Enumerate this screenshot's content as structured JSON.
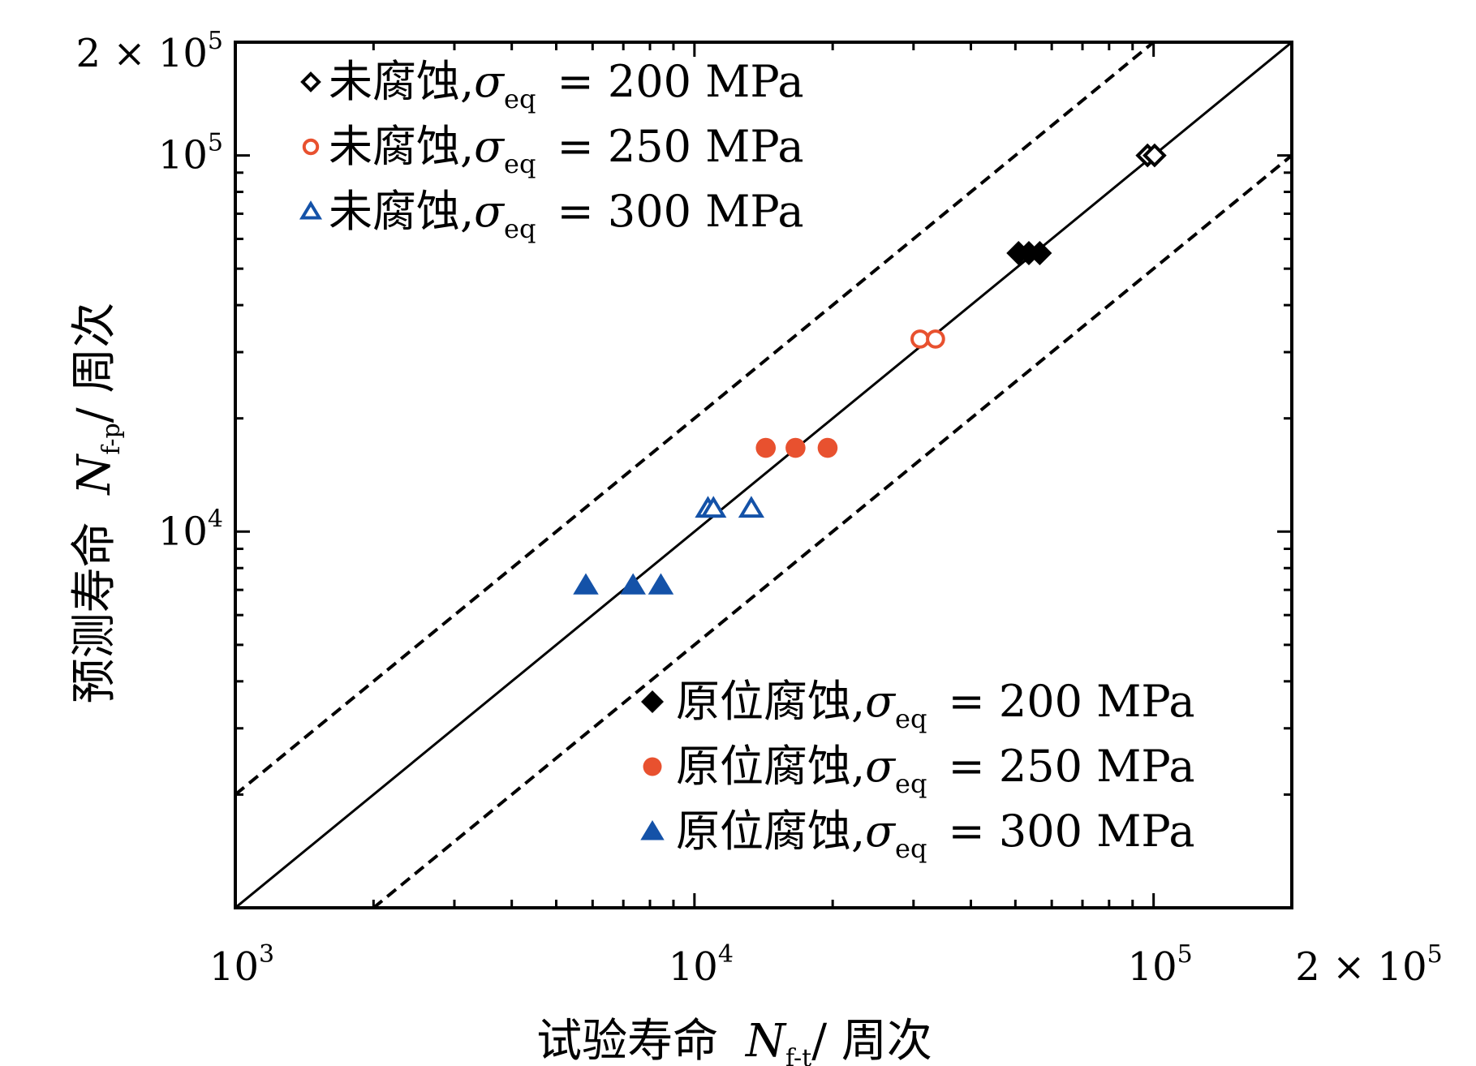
{
  "chart_data": {
    "type": "scatter",
    "xlabel": {
      "prefix": "试验寿命",
      "symbol": "N",
      "subscript": "f-t",
      "suffix": "/ 周次"
    },
    "ylabel": {
      "prefix": "预测寿命",
      "symbol": "N",
      "subscript": "f-p",
      "suffix": "/ 周次"
    },
    "xscale": "log",
    "yscale": "log",
    "xlim": [
      1000,
      200000
    ],
    "ylim": [
      1000,
      200000
    ],
    "x_ticks": [
      {
        "value": 1000,
        "base": "10",
        "exp": "3"
      },
      {
        "value": 10000,
        "base": "10",
        "exp": "4"
      },
      {
        "value": 100000,
        "base": "10",
        "exp": "5"
      },
      {
        "value": 200000,
        "base": "2 × 10",
        "exp": "5"
      }
    ],
    "y_ticks": [
      {
        "value": 10000,
        "base": "10",
        "exp": "4"
      },
      {
        "value": 100000,
        "base": "10",
        "exp": "5"
      },
      {
        "value": 200000,
        "base": "2 × 10",
        "exp": "5"
      }
    ],
    "reference_lines": [
      {
        "style": "solid",
        "factor": 1
      },
      {
        "style": "dashed",
        "factor": 2
      },
      {
        "style": "dashed",
        "factor": 0.5
      }
    ],
    "series": [
      {
        "name": "未腐蚀,σeq = 200 MPa",
        "marker": "diamond",
        "filled": false,
        "color": "#000000",
        "points": [
          [
            97000,
            100000
          ],
          [
            100500,
            100000
          ]
        ]
      },
      {
        "name": "未腐蚀,σeq = 250 MPa",
        "marker": "circle",
        "filled": false,
        "color": "#e8512f",
        "points": [
          [
            31000,
            32500
          ],
          [
            33500,
            32500
          ]
        ]
      },
      {
        "name": "未腐蚀,σeq = 300 MPa",
        "marker": "triangle",
        "filled": false,
        "color": "#1452a8",
        "points": [
          [
            10700,
            11500
          ],
          [
            11000,
            11500
          ],
          [
            13300,
            11500
          ]
        ]
      },
      {
        "name": "原位腐蚀,σeq = 200 MPa",
        "marker": "diamond",
        "filled": true,
        "color": "#000000",
        "points": [
          [
            50800,
            55000
          ],
          [
            53500,
            55000
          ],
          [
            56500,
            55000
          ]
        ]
      },
      {
        "name": "原位腐蚀,σeq = 250 MPa",
        "marker": "circle",
        "filled": true,
        "color": "#e8512f",
        "points": [
          [
            14300,
            16700
          ],
          [
            16600,
            16700
          ],
          [
            19500,
            16700
          ]
        ]
      },
      {
        "name": "原位腐蚀,σeq = 300 MPa",
        "marker": "triangle",
        "filled": true,
        "color": "#1452a8",
        "points": [
          [
            5800,
            7200
          ],
          [
            7350,
            7200
          ],
          [
            8450,
            7200
          ]
        ]
      }
    ],
    "legends": [
      {
        "placement": "top-left",
        "entries": [
          {
            "series": 0,
            "text": "未腐蚀",
            "sigma": "σ",
            "sub": "eq",
            "rest": "= 200 MPa"
          },
          {
            "series": 1,
            "text": "未腐蚀",
            "sigma": "σ",
            "sub": "eq",
            "rest": "= 250 MPa"
          },
          {
            "series": 2,
            "text": "未腐蚀",
            "sigma": "σ",
            "sub": "eq",
            "rest": "= 300 MPa"
          }
        ]
      },
      {
        "placement": "bottom-right",
        "entries": [
          {
            "series": 3,
            "text": "原位腐蚀",
            "sigma": "σ",
            "sub": "eq",
            "rest": "= 200 MPa"
          },
          {
            "series": 4,
            "text": "原位腐蚀",
            "sigma": "σ",
            "sub": "eq",
            "rest": "= 250 MPa"
          },
          {
            "series": 5,
            "text": "原位腐蚀",
            "sigma": "σ",
            "sub": "eq",
            "rest": "= 300 MPa"
          }
        ]
      }
    ]
  }
}
